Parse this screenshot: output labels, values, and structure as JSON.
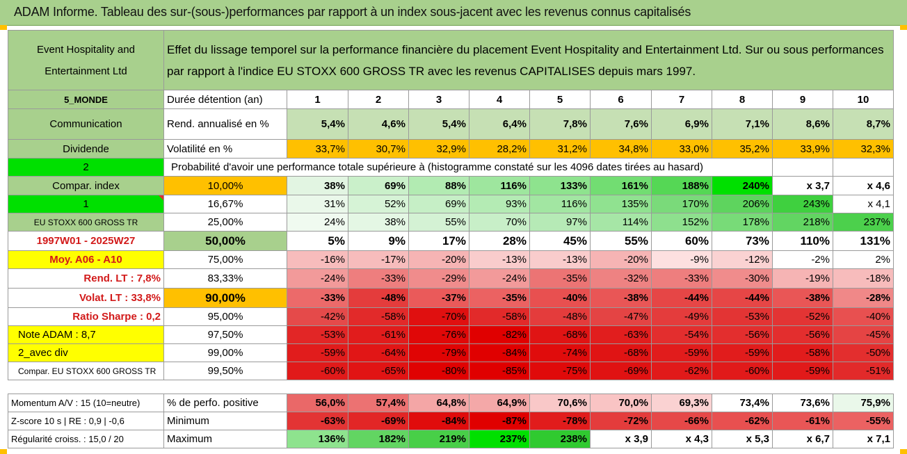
{
  "title": "ADAM Informe. Tableau des sur-(sous-)performances par rapport à un index sous-jacent avec les revenus connus capitalisés",
  "company": "Event Hospitality and Entertainment Ltd",
  "description": "Effet du lissage temporel sur la performance financière du placement Event Hospitality and Entertainment Ltd. Sur ou sous performances par rapport à l'indice EU STOXX 600 GROSS TR avec les revenus CAPITALISES depuis mars 1997.",
  "left_labels": {
    "zone": "5_MONDE",
    "sector": "Communication",
    "dividend": "Dividende",
    "two": "2",
    "compar_index": "Compar. index",
    "one": "1",
    "index_name": "EU STOXX 600 GROSS TR",
    "period": "1997W01 - 2025W27",
    "moy": "Moy. A06 - A10",
    "rend_lt": "Rend. LT :    7,8%",
    "volat_lt": "Volat. LT :    33,8%",
    "sharpe": "Ratio Sharpe :    0,2",
    "note": "Note ADAM : 8,7",
    "avec_div": "2_avec div",
    "compar_full": "Compar. EU STOXX 600 GROSS TR",
    "momentum": "Momentum A/V : 15 (10=neutre)",
    "zscore": "Z-score 10 s | RE : 0,9 | -0,6",
    "regularite": "Régularité croiss. : 15,0 / 20"
  },
  "header_row": {
    "label": "Durée détention (an)",
    "years": [
      "1",
      "2",
      "3",
      "4",
      "5",
      "6",
      "7",
      "8",
      "9",
      "10"
    ]
  },
  "rend_row": {
    "label": "Rend. annualisé en %",
    "values": [
      "5,4%",
      "4,6%",
      "5,4%",
      "6,4%",
      "7,8%",
      "7,6%",
      "6,9%",
      "7,1%",
      "8,6%",
      "8,7%"
    ]
  },
  "vol_row": {
    "label": "Volatilité en %",
    "values": [
      "33,7%",
      "30,7%",
      "32,9%",
      "28,2%",
      "31,2%",
      "34,8%",
      "33,0%",
      "35,2%",
      "33,9%",
      "32,3%"
    ]
  },
  "prob_title": "Probabilité d'avoir une performance totale supérieure à (histogramme constaté sur les 4096 dates tirées au hasard)",
  "prob_rows": [
    {
      "threshold": "10,00%",
      "values": [
        "38%",
        "69%",
        "88%",
        "116%",
        "133%",
        "161%",
        "188%",
        "240%",
        "x 3,7",
        "x 4,6"
      ]
    },
    {
      "threshold": "16,67%",
      "values": [
        "31%",
        "52%",
        "69%",
        "93%",
        "116%",
        "135%",
        "170%",
        "206%",
        "243%",
        "x 4,1"
      ]
    },
    {
      "threshold": "25,00%",
      "values": [
        "24%",
        "38%",
        "55%",
        "70%",
        "97%",
        "114%",
        "152%",
        "178%",
        "218%",
        "237%"
      ]
    },
    {
      "threshold": "50,00%",
      "values": [
        "5%",
        "9%",
        "17%",
        "28%",
        "45%",
        "55%",
        "60%",
        "73%",
        "110%",
        "131%"
      ]
    },
    {
      "threshold": "75,00%",
      "values": [
        "-16%",
        "-17%",
        "-20%",
        "-13%",
        "-13%",
        "-20%",
        "-9%",
        "-12%",
        "-2%",
        "2%"
      ]
    },
    {
      "threshold": "83,33%",
      "values": [
        "-24%",
        "-33%",
        "-29%",
        "-24%",
        "-35%",
        "-32%",
        "-33%",
        "-30%",
        "-19%",
        "-18%"
      ]
    },
    {
      "threshold": "90,00%",
      "values": [
        "-33%",
        "-48%",
        "-37%",
        "-35%",
        "-40%",
        "-38%",
        "-44%",
        "-44%",
        "-38%",
        "-28%"
      ]
    },
    {
      "threshold": "95,00%",
      "values": [
        "-42%",
        "-58%",
        "-70%",
        "-58%",
        "-48%",
        "-47%",
        "-49%",
        "-53%",
        "-52%",
        "-40%"
      ]
    },
    {
      "threshold": "97,50%",
      "values": [
        "-53%",
        "-61%",
        "-76%",
        "-82%",
        "-68%",
        "-63%",
        "-54%",
        "-56%",
        "-56%",
        "-45%"
      ]
    },
    {
      "threshold": "99,00%",
      "values": [
        "-59%",
        "-64%",
        "-79%",
        "-84%",
        "-74%",
        "-68%",
        "-59%",
        "-59%",
        "-58%",
        "-50%"
      ]
    },
    {
      "threshold": "99,50%",
      "values": [
        "-60%",
        "-65%",
        "-80%",
        "-85%",
        "-75%",
        "-69%",
        "-62%",
        "-60%",
        "-59%",
        "-51%"
      ]
    }
  ],
  "stats_rows": [
    {
      "label": "% de perfo. positive",
      "values": [
        "56,0%",
        "57,4%",
        "64,8%",
        "64,9%",
        "70,6%",
        "70,0%",
        "69,3%",
        "73,4%",
        "73,6%",
        "75,9%"
      ]
    },
    {
      "label": "Minimum",
      "values": [
        "-63%",
        "-69%",
        "-84%",
        "-87%",
        "-78%",
        "-72%",
        "-66%",
        "-62%",
        "-61%",
        "-55%"
      ]
    },
    {
      "label": "Maximum",
      "values": [
        "136%",
        "182%",
        "219%",
        "237%",
        "238%",
        "x 3,9",
        "x 4,3",
        "x 5,3",
        "x 6,7",
        "x 7,1"
      ]
    }
  ],
  "colors": {
    "header_green": "#a8d08d",
    "orange": "#ffc000",
    "bright_green": "#00e000",
    "yellow": "#ffff00",
    "red_text": "#d21a1a"
  }
}
